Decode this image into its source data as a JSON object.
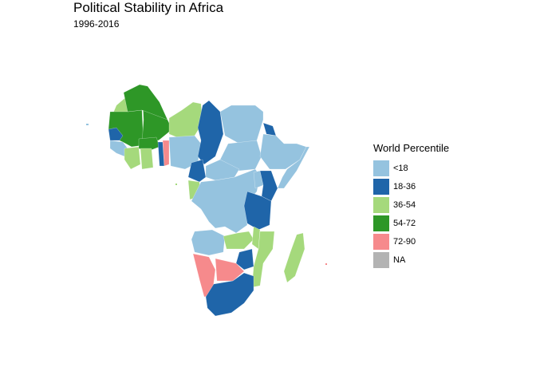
{
  "title": "Political Stability in Africa",
  "subtitle": "1996-2016",
  "legend": {
    "title": "World Percentile",
    "items": [
      {
        "label": "<18",
        "color": "#95c3df"
      },
      {
        "label": "18-36",
        "color": "#1f65a9"
      },
      {
        "label": "36-54",
        "color": "#a5d97c"
      },
      {
        "label": "54-72",
        "color": "#2e9727"
      },
      {
        "label": "72-90",
        "color": "#f68a8c"
      },
      {
        "label": "NA",
        "color": "#b3b3b3"
      }
    ]
  }
}
